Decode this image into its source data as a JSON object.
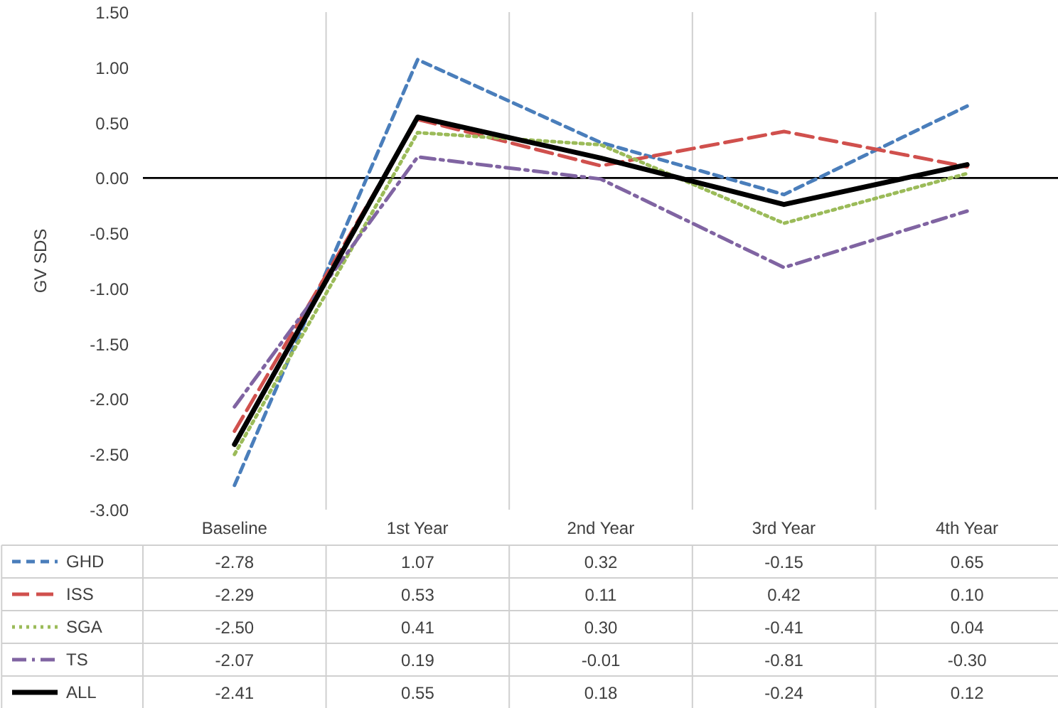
{
  "chart_data": {
    "type": "line",
    "ylabel": "GV SDS",
    "categories": [
      "Baseline",
      "1st Year",
      "2nd Year",
      "3rd Year",
      "4th Year"
    ],
    "ylim": [
      -3,
      1.5
    ],
    "yticks": [
      {
        "value": -3,
        "label": "-3.00"
      },
      {
        "value": -2.5,
        "label": "-2.50"
      },
      {
        "value": -2,
        "label": "-2.00"
      },
      {
        "value": -1.5,
        "label": "-1.50"
      },
      {
        "value": -1,
        "label": "-1.00"
      },
      {
        "value": -0.5,
        "label": "-0.50"
      },
      {
        "value": 0,
        "label": "0.00"
      },
      {
        "value": 0.5,
        "label": "0.50"
      },
      {
        "value": 1,
        "label": "1.00"
      },
      {
        "value": 1.5,
        "label": "1.50"
      }
    ],
    "grid": "x",
    "legend": "bottom",
    "ref_lines": [
      {
        "axis": "y",
        "value": 0,
        "color": "#000000"
      }
    ],
    "series": [
      {
        "name": "GHD",
        "color": "#4a7ebb",
        "line_style": "dashed",
        "values": [
          -2.78,
          1.07,
          0.32,
          -0.15,
          0.65
        ],
        "value_labels": [
          "-2.78",
          "1.07",
          "0.32",
          "-0.15",
          "0.65"
        ]
      },
      {
        "name": "ISS",
        "color": "#d0504d",
        "line_style": "dashed",
        "values": [
          -2.29,
          0.53,
          0.11,
          0.42,
          0.1
        ],
        "value_labels": [
          "-2.29",
          "0.53",
          "0.11",
          "0.42",
          "0.10"
        ]
      },
      {
        "name": "SGA",
        "color": "#9bbb59",
        "line_style": "dotted",
        "values": [
          -2.5,
          0.41,
          0.3,
          -0.41,
          0.04
        ],
        "value_labels": [
          "-2.50",
          "0.41",
          "0.30",
          "-0.41",
          "0.04"
        ]
      },
      {
        "name": "TS",
        "color": "#8064a2",
        "line_style": "dashdot",
        "values": [
          -2.07,
          0.19,
          -0.01,
          -0.81,
          -0.3
        ],
        "value_labels": [
          "-2.07",
          "0.19",
          "-0.01",
          "-0.81",
          "-0.30"
        ]
      },
      {
        "name": "ALL",
        "color": "#000000",
        "line_style": "solid",
        "values": [
          -2.41,
          0.55,
          0.18,
          -0.24,
          0.12
        ],
        "value_labels": [
          "-2.41",
          "0.55",
          "0.18",
          "-0.24",
          "0.12"
        ]
      }
    ]
  }
}
